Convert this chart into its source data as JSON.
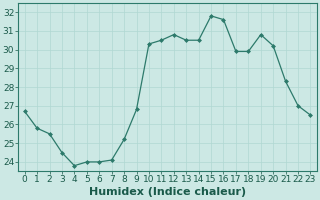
{
  "x": [
    0,
    1,
    2,
    3,
    4,
    5,
    6,
    7,
    8,
    9,
    10,
    11,
    12,
    13,
    14,
    15,
    16,
    17,
    18,
    19,
    20,
    21,
    22,
    23
  ],
  "y": [
    26.7,
    25.8,
    25.5,
    24.5,
    23.8,
    24.0,
    24.0,
    24.1,
    25.2,
    26.8,
    30.3,
    30.5,
    30.8,
    30.5,
    30.5,
    31.8,
    31.6,
    29.9,
    29.9,
    30.8,
    30.2,
    28.3,
    27.0,
    26.5
  ],
  "line_color": "#2d7a6b",
  "marker_color": "#2d7a6b",
  "bg_color": "#cce8e4",
  "grid_color": "#b0d8d2",
  "xlabel": "Humidex (Indice chaleur)",
  "xlabel_fontsize": 8,
  "ylim": [
    23.5,
    32.5
  ],
  "xlim": [
    -0.5,
    23.5
  ],
  "yticks": [
    24,
    25,
    26,
    27,
    28,
    29,
    30,
    31,
    32
  ],
  "xticks": [
    0,
    1,
    2,
    3,
    4,
    5,
    6,
    7,
    8,
    9,
    10,
    11,
    12,
    13,
    14,
    15,
    16,
    17,
    18,
    19,
    20,
    21,
    22,
    23
  ],
  "tick_fontsize": 6.5,
  "figsize": [
    3.2,
    2.0
  ],
  "dpi": 100
}
